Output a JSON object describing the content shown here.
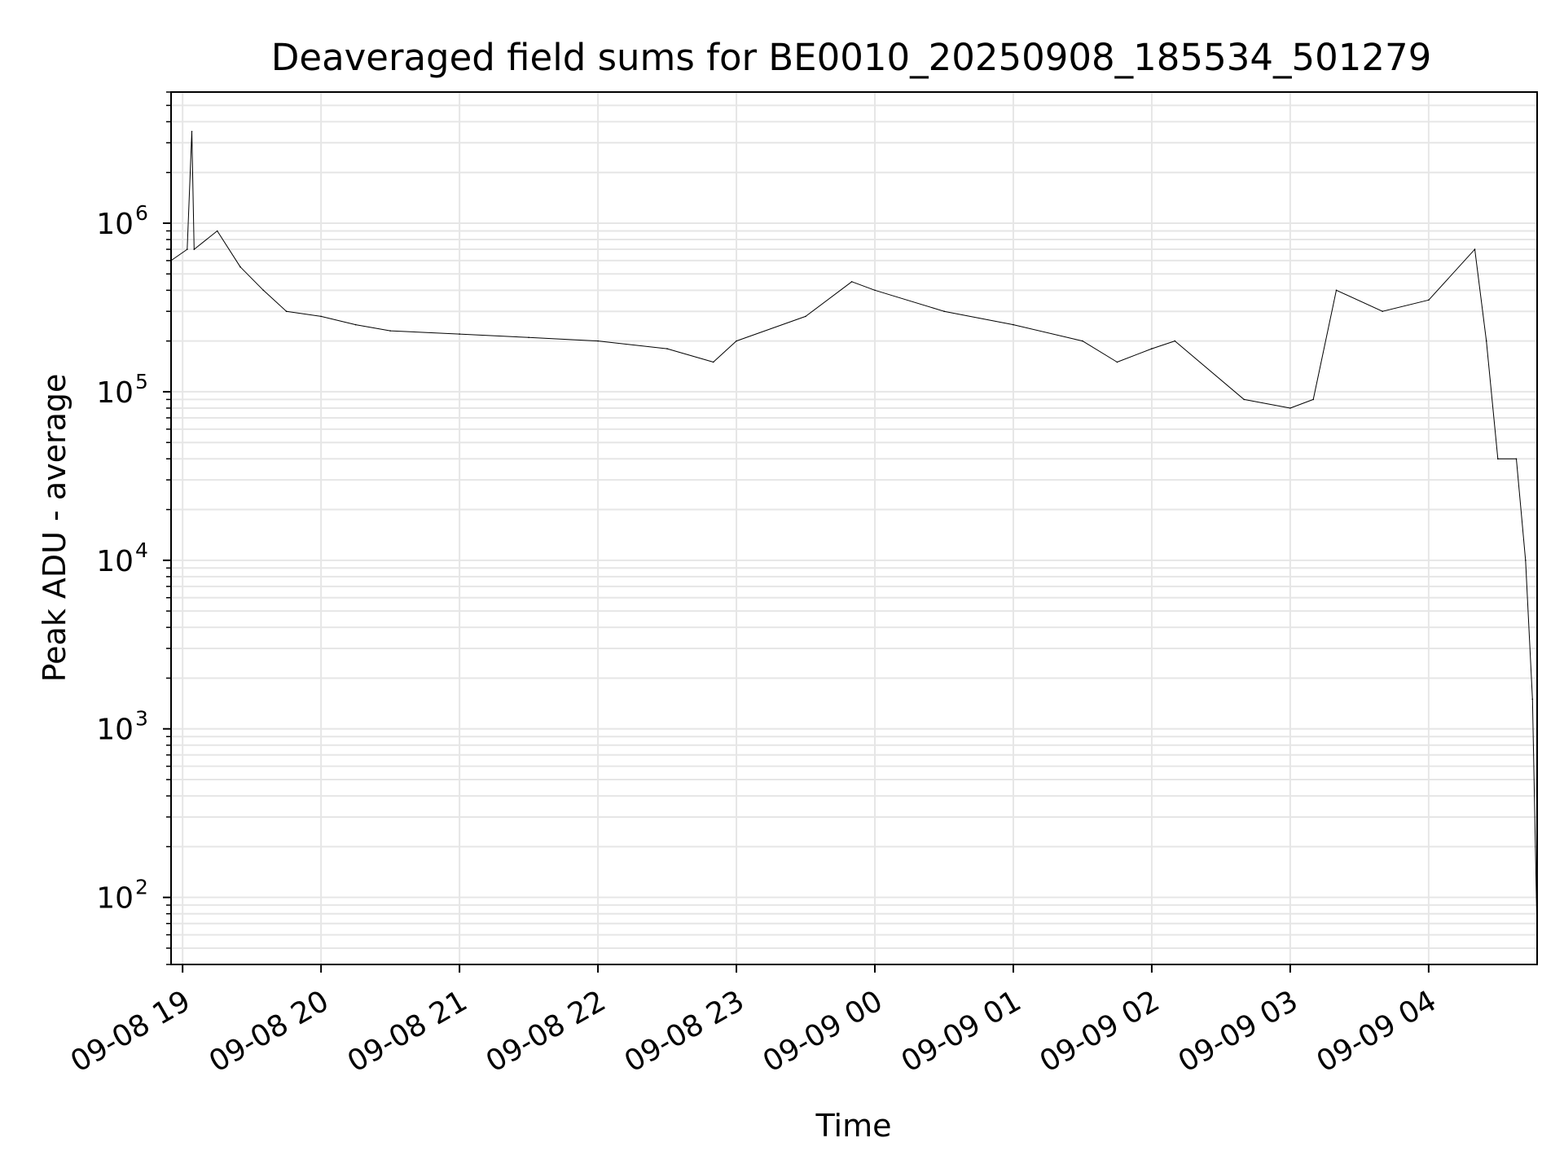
{
  "chart_data": {
    "type": "line",
    "title": "Deaveraged field sums for BE0010_20250908_185534_501279",
    "xlabel": "Time",
    "ylabel": "Peak ADU - average",
    "yscale": "log",
    "ylim": [
      40,
      6000000
    ],
    "xlim": [
      "2025-09-08 18:55",
      "2025-09-09 04:47"
    ],
    "grid": true,
    "x_ticks": [
      {
        "label": "09-08 19",
        "time": "2025-09-08 19:00"
      },
      {
        "label": "09-08 20",
        "time": "2025-09-08 20:00"
      },
      {
        "label": "09-08 21",
        "time": "2025-09-08 21:00"
      },
      {
        "label": "09-08 22",
        "time": "2025-09-08 22:00"
      },
      {
        "label": "09-08 23",
        "time": "2025-09-08 23:00"
      },
      {
        "label": "09-09 00",
        "time": "2025-09-09 00:00"
      },
      {
        "label": "09-09 01",
        "time": "2025-09-09 01:00"
      },
      {
        "label": "09-09 02",
        "time": "2025-09-09 02:00"
      },
      {
        "label": "09-09 03",
        "time": "2025-09-09 03:00"
      },
      {
        "label": "09-09 04",
        "time": "2025-09-09 04:00"
      }
    ],
    "y_ticks": [
      {
        "value": 100,
        "base": "10",
        "exp": "2"
      },
      {
        "value": 1000,
        "base": "10",
        "exp": "3"
      },
      {
        "value": 10000,
        "base": "10",
        "exp": "4"
      },
      {
        "value": 100000,
        "base": "10",
        "exp": "5"
      },
      {
        "value": 1000000,
        "base": "10",
        "exp": "6"
      }
    ],
    "series": [
      {
        "color": "#000000",
        "line_width": 1,
        "points": [
          [
            "2025-09-08 18:55",
            600000
          ],
          [
            "2025-09-08 19:02",
            700000
          ],
          [
            "2025-09-08 19:04",
            3500000
          ],
          [
            "2025-09-08 19:05",
            700000
          ],
          [
            "2025-09-08 19:15",
            900000
          ],
          [
            "2025-09-08 19:25",
            550000
          ],
          [
            "2025-09-08 19:35",
            400000
          ],
          [
            "2025-09-08 19:45",
            300000
          ],
          [
            "2025-09-08 20:00",
            280000
          ],
          [
            "2025-09-08 20:15",
            250000
          ],
          [
            "2025-09-08 20:30",
            230000
          ],
          [
            "2025-09-08 21:00",
            220000
          ],
          [
            "2025-09-08 21:30",
            210000
          ],
          [
            "2025-09-08 22:00",
            200000
          ],
          [
            "2025-09-08 22:30",
            180000
          ],
          [
            "2025-09-08 22:50",
            150000
          ],
          [
            "2025-09-08 23:00",
            200000
          ],
          [
            "2025-09-08 23:30",
            280000
          ],
          [
            "2025-09-08 23:50",
            450000
          ],
          [
            "2025-09-09 00:00",
            400000
          ],
          [
            "2025-09-09 00:30",
            300000
          ],
          [
            "2025-09-09 01:00",
            250000
          ],
          [
            "2025-09-09 01:30",
            200000
          ],
          [
            "2025-09-09 01:45",
            150000
          ],
          [
            "2025-09-09 02:00",
            180000
          ],
          [
            "2025-09-09 02:10",
            200000
          ],
          [
            "2025-09-09 02:40",
            90000
          ],
          [
            "2025-09-09 03:00",
            80000
          ],
          [
            "2025-09-09 03:10",
            90000
          ],
          [
            "2025-09-09 03:20",
            400000
          ],
          [
            "2025-09-09 03:40",
            300000
          ],
          [
            "2025-09-09 04:00",
            350000
          ],
          [
            "2025-09-09 04:20",
            700000
          ],
          [
            "2025-09-09 04:25",
            200000
          ],
          [
            "2025-09-09 04:30",
            40000
          ],
          [
            "2025-09-09 04:38",
            40000
          ],
          [
            "2025-09-09 04:42",
            10000
          ],
          [
            "2025-09-09 04:45",
            1500
          ],
          [
            "2025-09-09 04:47",
            60
          ]
        ]
      }
    ]
  }
}
